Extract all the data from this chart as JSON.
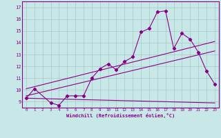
{
  "xlabel": "Windchill (Refroidissement éolien,°C)",
  "background_color": "#c8e8e8",
  "grid_color": "#a8c8c8",
  "line_color": "#880088",
  "xlim": [
    -0.5,
    23.5
  ],
  "ylim": [
    8.5,
    17.5
  ],
  "xticks": [
    0,
    1,
    2,
    3,
    4,
    5,
    6,
    7,
    8,
    9,
    10,
    11,
    12,
    13,
    14,
    15,
    16,
    17,
    18,
    19,
    20,
    21,
    22,
    23
  ],
  "yticks": [
    9,
    10,
    11,
    12,
    13,
    14,
    15,
    16,
    17
  ],
  "curve1_x": [
    0,
    1,
    3,
    4,
    5,
    6,
    7,
    8,
    9,
    10,
    11,
    12,
    13,
    14,
    15,
    16,
    17,
    18,
    19,
    20,
    21,
    22,
    23
  ],
  "curve1_y": [
    9.3,
    10.1,
    8.9,
    8.7,
    9.5,
    9.5,
    9.5,
    11.0,
    11.8,
    12.2,
    11.7,
    12.4,
    12.8,
    14.9,
    15.2,
    16.6,
    16.7,
    13.5,
    14.8,
    14.3,
    13.2,
    11.6,
    10.5
  ],
  "line1_x": [
    0,
    23
  ],
  "line1_y": [
    9.3,
    8.9
  ],
  "line2_x": [
    0,
    23
  ],
  "line2_y": [
    10.1,
    14.1
  ],
  "line3_x": [
    0,
    23
  ],
  "line3_y": [
    9.5,
    13.3
  ]
}
